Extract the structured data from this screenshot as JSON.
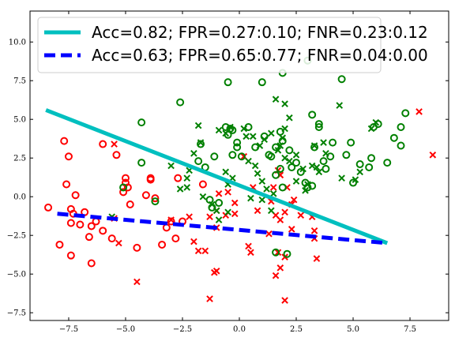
{
  "chart_data": {
    "type": "scatter",
    "title": "",
    "xlabel": "",
    "ylabel": "",
    "xlim": [
      -9.2,
      9.2
    ],
    "ylim": [
      -8.0,
      12.0
    ],
    "xticks": [
      -7.5,
      -5.0,
      -2.5,
      0.0,
      2.5,
      5.0,
      7.5
    ],
    "yticks": [
      -7.5,
      -5.0,
      -2.5,
      0.0,
      2.5,
      5.0,
      7.5,
      10.0
    ],
    "xtick_labels": [
      "−7.5",
      "−5.0",
      "−2.5",
      "0.0",
      "2.5",
      "5.0",
      "7.5"
    ],
    "ytick_labels": [
      "−7.5",
      "−5.0",
      "−2.5",
      "0.0",
      "2.5",
      "5.0",
      "7.5",
      "10.0"
    ],
    "grid": false,
    "legend_position": "top-left",
    "colors": {
      "red": "#ff0000",
      "green": "#008000",
      "cyan": "#00bfbf",
      "blue": "#0000ff"
    },
    "lines": [
      {
        "name": "Acc=0.82; FPR=0.27:0.10; FNR=0.23:0.12",
        "color": "#00bfbf",
        "style": "solid",
        "x": [
          -8.5,
          6.5
        ],
        "y": [
          5.6,
          -3.0
        ]
      },
      {
        "name": "Acc=0.63; FPR=0.65:0.77; FNR=0.04:0.00",
        "color": "#0000ff",
        "style": "dashed",
        "x": [
          -8.0,
          6.5
        ],
        "y": [
          -1.1,
          -3.0
        ]
      }
    ],
    "series": [
      {
        "marker": "circle",
        "color": "#ff0000",
        "points": [
          [
            -7.7,
            3.6
          ],
          [
            -7.5,
            2.6
          ],
          [
            -7.6,
            0.8
          ],
          [
            -7.2,
            0.1
          ],
          [
            -8.4,
            -0.7
          ],
          [
            -7.4,
            -0.8
          ],
          [
            -7.3,
            -1.1
          ],
          [
            -7.4,
            -1.7
          ],
          [
            -7.0,
            -1.8
          ],
          [
            -6.5,
            -1.9
          ],
          [
            -6.8,
            -1.0
          ],
          [
            -6.3,
            -1.6
          ],
          [
            -6.6,
            -2.6
          ],
          [
            -5.6,
            -2.7
          ],
          [
            -6.0,
            -2.2
          ],
          [
            -7.9,
            -3.1
          ],
          [
            -7.4,
            -3.8
          ],
          [
            -6.5,
            -4.3
          ],
          [
            -4.5,
            -3.3
          ],
          [
            -3.4,
            -3.1
          ],
          [
            -2.8,
            -2.7
          ],
          [
            -3.0,
            -1.6
          ],
          [
            -3.2,
            -2.0
          ],
          [
            -2.5,
            -1.6
          ],
          [
            -2.7,
            1.2
          ],
          [
            -3.9,
            1.1
          ],
          [
            -3.9,
            1.2
          ],
          [
            -4.1,
            0.1
          ],
          [
            -3.7,
            -0.1
          ],
          [
            -4.8,
            -0.5
          ],
          [
            -5.1,
            0.3
          ],
          [
            -4.9,
            0.6
          ],
          [
            -5.0,
            0.9
          ],
          [
            -5.0,
            1.2
          ],
          [
            -5.4,
            2.7
          ],
          [
            -6.0,
            3.4
          ],
          [
            -1.6,
            0.8
          ]
        ]
      },
      {
        "marker": "x",
        "color": "#ff0000",
        "points": [
          [
            -5.5,
            3.4
          ],
          [
            -5.5,
            -1.4
          ],
          [
            -5.3,
            -3.0
          ],
          [
            -4.5,
            -5.5
          ],
          [
            -3.0,
            -1.5
          ],
          [
            -2.2,
            -1.3
          ],
          [
            -1.3,
            -1.3
          ],
          [
            -1.0,
            -2.0
          ],
          [
            -1.0,
            -0.9
          ],
          [
            -1.5,
            -3.5
          ],
          [
            -2.0,
            -2.9
          ],
          [
            -1.8,
            -3.5
          ],
          [
            -1.3,
            -6.6
          ],
          [
            -1.1,
            -4.9
          ],
          [
            -1.0,
            -4.8
          ],
          [
            -0.9,
            0.2
          ],
          [
            -0.5,
            0.3
          ],
          [
            -0.2,
            -0.4
          ],
          [
            -0.6,
            -1.2
          ],
          [
            -0.2,
            -1.1
          ],
          [
            0.2,
            2.6
          ],
          [
            0.6,
            0.6
          ],
          [
            0.8,
            -0.9
          ],
          [
            0.4,
            -3.2
          ],
          [
            0.5,
            -3.6
          ],
          [
            1.3,
            -2.4
          ],
          [
            1.4,
            -0.3
          ],
          [
            1.6,
            -1.2
          ],
          [
            1.8,
            -1.5
          ],
          [
            1.7,
            -3.6
          ],
          [
            2.0,
            -3.9
          ],
          [
            1.6,
            -5.1
          ],
          [
            1.8,
            -4.6
          ],
          [
            2.0,
            -6.7
          ],
          [
            2.3,
            -0.5
          ],
          [
            2.7,
            -1.2
          ],
          [
            2.1,
            0.6
          ],
          [
            1.7,
            1.7
          ],
          [
            1.8,
            1.4
          ],
          [
            1.5,
            0.6
          ],
          [
            2.4,
            -0.2
          ],
          [
            3.2,
            -1.3
          ],
          [
            3.3,
            -2.2
          ],
          [
            3.3,
            -2.7
          ],
          [
            3.4,
            -4.0
          ],
          [
            2.0,
            -1.0
          ],
          [
            2.3,
            -2.1
          ],
          [
            7.9,
            5.5
          ],
          [
            8.5,
            2.7
          ]
        ]
      },
      {
        "marker": "circle",
        "color": "#008000",
        "points": [
          [
            -2.6,
            6.1
          ],
          [
            -1.7,
            3.4
          ],
          [
            -1.8,
            2.3
          ],
          [
            -1.5,
            1.9
          ],
          [
            -1.1,
            2.6
          ],
          [
            -0.6,
            4.5
          ],
          [
            -0.5,
            4.0
          ],
          [
            -0.3,
            4.3
          ],
          [
            -0.1,
            3.2
          ],
          [
            -0.3,
            2.7
          ],
          [
            0.1,
            2.6
          ],
          [
            0.4,
            4.5
          ],
          [
            -0.5,
            7.4
          ],
          [
            1.0,
            7.4
          ],
          [
            1.9,
            8.0
          ],
          [
            1.8,
            4.2
          ],
          [
            1.6,
            3.2
          ],
          [
            1.9,
            3.6
          ],
          [
            2.2,
            3.0
          ],
          [
            1.1,
            3.9
          ],
          [
            1.4,
            2.6
          ],
          [
            1.6,
            1.4
          ],
          [
            1.8,
            1.8
          ],
          [
            1.9,
            0.6
          ],
          [
            2.3,
            1.9
          ],
          [
            2.7,
            1.6
          ],
          [
            3.0,
            0.6
          ],
          [
            3.2,
            0.7
          ],
          [
            3.2,
            5.3
          ],
          [
            3.3,
            3.2
          ],
          [
            3.5,
            4.7
          ],
          [
            3.7,
            2.3
          ],
          [
            3.8,
            1.8
          ],
          [
            4.1,
            3.5
          ],
          [
            4.0,
            2.6
          ],
          [
            4.5,
            7.6
          ],
          [
            4.9,
            3.5
          ],
          [
            4.7,
            2.7
          ],
          [
            5.0,
            0.9
          ],
          [
            5.3,
            2.1
          ],
          [
            5.7,
            1.9
          ],
          [
            5.8,
            2.5
          ],
          [
            5.9,
            4.5
          ],
          [
            6.1,
            4.7
          ],
          [
            6.5,
            2.2
          ],
          [
            6.8,
            3.8
          ],
          [
            7.1,
            4.5
          ],
          [
            7.1,
            3.3
          ],
          [
            7.3,
            5.4
          ],
          [
            1.6,
            -3.6
          ],
          [
            2.1,
            -3.7
          ],
          [
            -4.3,
            4.8
          ],
          [
            -4.3,
            2.2
          ],
          [
            -3.7,
            -0.3
          ],
          [
            -5.1,
            0.6
          ],
          [
            -1.3,
            -0.2
          ],
          [
            -0.9,
            -0.4
          ],
          [
            -1.2,
            -0.7
          ],
          [
            -0.4,
            4.4
          ],
          [
            -0.1,
            3.5
          ],
          [
            0.7,
            3.2
          ],
          [
            1.3,
            2.7
          ],
          [
            2.5,
            2.2
          ],
          [
            2.9,
            0.9
          ],
          [
            3.5,
            4.5
          ],
          [
            3.0,
            8.8
          ]
        ]
      },
      {
        "marker": "x",
        "color": "#008000",
        "points": [
          [
            -5.6,
            -1.3
          ],
          [
            -3.0,
            2.0
          ],
          [
            -2.0,
            2.8
          ],
          [
            -2.2,
            1.7
          ],
          [
            -2.3,
            1.2
          ],
          [
            -2.6,
            0.5
          ],
          [
            -2.3,
            0.6
          ],
          [
            -1.6,
            0.0
          ],
          [
            -1.2,
            -0.5
          ],
          [
            -1.0,
            -0.9
          ],
          [
            -1.8,
            4.6
          ],
          [
            -1.7,
            3.5
          ],
          [
            -0.9,
            4.3
          ],
          [
            -0.6,
            4.1
          ],
          [
            -0.4,
            4.5
          ],
          [
            0.2,
            4.4
          ],
          [
            0.3,
            3.9
          ],
          [
            0.6,
            3.9
          ],
          [
            0.9,
            3.3
          ],
          [
            1.1,
            3.7
          ],
          [
            1.4,
            4.1
          ],
          [
            1.8,
            3.3
          ],
          [
            2.0,
            4.4
          ],
          [
            1.9,
            3.8
          ],
          [
            2.2,
            5.1
          ],
          [
            1.6,
            6.3
          ],
          [
            2.0,
            6.0
          ],
          [
            1.7,
            3.0
          ],
          [
            2.2,
            2.3
          ],
          [
            2.5,
            2.7
          ],
          [
            2.8,
            1.8
          ],
          [
            3.2,
            2.0
          ],
          [
            3.3,
            3.3
          ],
          [
            3.4,
            1.9
          ],
          [
            3.5,
            1.6
          ],
          [
            3.7,
            3.5
          ],
          [
            3.8,
            2.8
          ],
          [
            4.5,
            1.2
          ],
          [
            4.4,
            5.9
          ],
          [
            5.1,
            1.1
          ],
          [
            5.3,
            1.6
          ],
          [
            5.8,
            4.4
          ],
          [
            6.0,
            4.8
          ],
          [
            1.2,
            0.5
          ],
          [
            0.8,
            1.5
          ],
          [
            1.0,
            1.0
          ],
          [
            0.4,
            2.3
          ],
          [
            0.7,
            2.0
          ],
          [
            -0.3,
            1.2
          ],
          [
            -0.5,
            0.8
          ],
          [
            0.5,
            -0.1
          ],
          [
            1.0,
            -0.2
          ],
          [
            1.4,
            -0.9
          ],
          [
            2.0,
            2.5
          ],
          [
            2.5,
            1.0
          ],
          [
            3.0,
            0.8
          ],
          [
            2.9,
            0.4
          ],
          [
            1.5,
            0.2
          ],
          [
            -0.6,
            1.6
          ],
          [
            -0.9,
            -1.5
          ],
          [
            -0.5,
            -1.0
          ]
        ]
      }
    ]
  }
}
